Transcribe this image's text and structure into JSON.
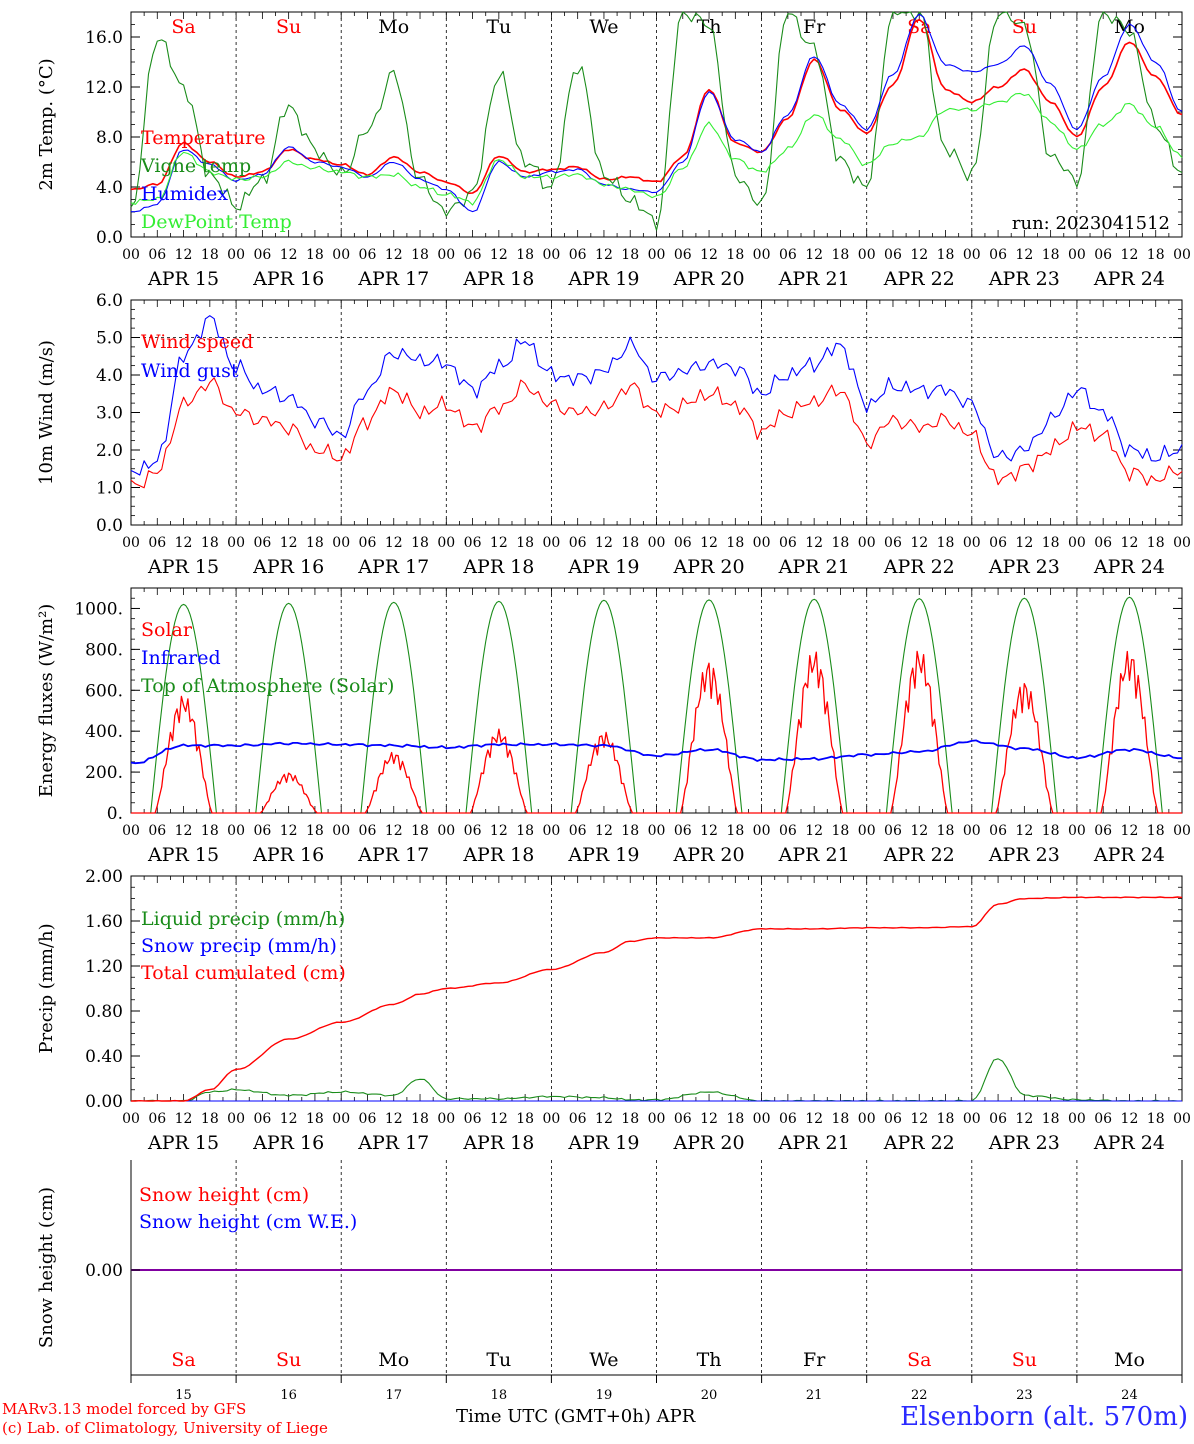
{
  "footer": {
    "credit_line1": "MARv3.13 model forced by GFS",
    "credit_line2": "(c) Lab. of Climatology, University of Liege",
    "time_axis_label": "Time UTC (GMT+0h)",
    "month_label": "APR",
    "station": "Elsenborn (alt. 570m)"
  },
  "colors": {
    "red": "#ff0000",
    "green": "#1a8c1a",
    "blue": "#0000ff",
    "light_green": "#33ee33",
    "purple": "#8000a0",
    "weekend": "#ff0000",
    "weekday": "#000000"
  },
  "chart_data": [
    {
      "type": "line",
      "ylabel": "2m Temp. (°C)",
      "ylim": [
        0,
        18
      ],
      "yticks": [
        "0.0",
        "4.0",
        "8.0",
        "12.0",
        "16.0"
      ],
      "ytick_values": [
        0,
        4,
        8,
        12,
        16
      ],
      "annotation": "run: 2023041512",
      "top_day_labels": [
        "Sa",
        "Su",
        "Mo",
        "Tu",
        "We",
        "Th",
        "Fr",
        "Sa",
        "Su",
        "Mo"
      ],
      "x_hours": [
        0,
        6,
        12,
        18,
        24,
        30,
        36,
        42,
        48,
        54,
        60,
        66,
        72,
        78,
        84,
        90,
        96,
        102,
        108,
        114,
        120,
        126,
        132,
        138,
        144,
        150,
        156,
        162,
        168,
        174,
        180,
        186,
        192,
        198,
        204,
        210,
        216,
        222,
        228,
        234,
        240
      ],
      "series": [
        {
          "name": "Temperature",
          "color": "#ff0000",
          "values": [
            3.8,
            4.2,
            7.5,
            6.0,
            4.8,
            5.2,
            7.0,
            6.2,
            5.8,
            5.0,
            6.4,
            5.2,
            4.4,
            3.5,
            6.5,
            5.2,
            5.4,
            5.6,
            4.6,
            4.8,
            4.4,
            6.4,
            11.8,
            7.5,
            6.8,
            9.5,
            14.2,
            10.2,
            8.3,
            12.2,
            17.5,
            11.8,
            10.8,
            12.0,
            13.4,
            10.8,
            8.0,
            12.0,
            15.6,
            12.8,
            9.8
          ]
        },
        {
          "name": "Vigne temp",
          "color": "#1a8c1a",
          "values": [
            2.0,
            16.0,
            12.0,
            5.0,
            2.5,
            4.5,
            10.5,
            7.0,
            5.0,
            8.5,
            13.0,
            4.5,
            2.0,
            3.5,
            13.0,
            6.0,
            4.0,
            13.8,
            5.0,
            3.0,
            1.2,
            18.0,
            17.0,
            5.0,
            2.5,
            18.0,
            15.0,
            6.0,
            4.0,
            18.0,
            18.0,
            7.0,
            5.0,
            18.0,
            17.0,
            6.5,
            4.5,
            18.0,
            16.5,
            9.0,
            5.0
          ]
        },
        {
          "name": "Humidex",
          "color": "#0000ff",
          "values": [
            2.0,
            2.6,
            7.0,
            5.8,
            4.5,
            5.0,
            7.2,
            6.0,
            5.6,
            4.8,
            6.0,
            4.6,
            3.8,
            2.0,
            6.0,
            4.8,
            5.2,
            5.4,
            4.2,
            3.8,
            3.6,
            6.0,
            11.6,
            7.8,
            6.8,
            9.8,
            14.5,
            10.6,
            8.6,
            13.0,
            17.8,
            13.8,
            13.2,
            13.8,
            15.3,
            12.2,
            8.6,
            12.8,
            17.0,
            14.0,
            10.0
          ]
        },
        {
          "name": "DewPoint Temp",
          "color": "#33ee33",
          "values": [
            2.8,
            3.0,
            6.8,
            5.2,
            4.6,
            4.8,
            6.0,
            5.5,
            5.2,
            4.8,
            5.0,
            4.0,
            3.4,
            2.8,
            6.2,
            4.8,
            4.8,
            5.0,
            4.2,
            3.8,
            3.2,
            5.5,
            9.0,
            6.2,
            5.2,
            7.0,
            9.8,
            7.8,
            5.8,
            7.5,
            8.0,
            10.2,
            10.2,
            10.8,
            11.5,
            9.2,
            7.0,
            9.0,
            10.6,
            8.8,
            6.4
          ]
        }
      ]
    },
    {
      "type": "line",
      "ylabel": "10m Wind (m/s)",
      "ylim": [
        0,
        6
      ],
      "yticks": [
        "0.0",
        "1.0",
        "2.0",
        "3.0",
        "4.0",
        "5.0",
        "6.0"
      ],
      "ytick_values": [
        0,
        1,
        2,
        3,
        4,
        5,
        6
      ],
      "x_hours": [
        0,
        6,
        12,
        18,
        24,
        30,
        36,
        42,
        48,
        54,
        60,
        66,
        72,
        78,
        84,
        90,
        96,
        102,
        108,
        114,
        120,
        126,
        132,
        138,
        144,
        150,
        156,
        162,
        168,
        174,
        180,
        186,
        192,
        198,
        204,
        210,
        216,
        222,
        228,
        234,
        240
      ],
      "series": [
        {
          "name": "Wind speed",
          "color": "#ff0000",
          "values": [
            1.0,
            1.4,
            3.2,
            3.8,
            3.0,
            2.8,
            2.6,
            2.0,
            1.8,
            2.8,
            3.6,
            3.0,
            3.2,
            2.6,
            3.1,
            3.7,
            3.2,
            3.0,
            3.1,
            3.7,
            3.0,
            3.2,
            3.5,
            3.2,
            2.5,
            3.0,
            3.3,
            3.6,
            2.2,
            2.8,
            2.6,
            2.8,
            2.4,
            1.2,
            1.5,
            2.0,
            2.6,
            2.4,
            1.4,
            1.2,
            1.5
          ]
        },
        {
          "name": "Wind gust",
          "color": "#0000ff",
          "values": [
            1.4,
            1.7,
            4.5,
            5.5,
            4.2,
            3.6,
            3.4,
            2.8,
            2.4,
            3.6,
            4.6,
            4.4,
            4.3,
            3.6,
            4.2,
            4.9,
            4.0,
            3.9,
            4.1,
            4.8,
            3.9,
            4.1,
            4.3,
            4.2,
            3.5,
            4.0,
            4.3,
            4.8,
            3.2,
            3.7,
            3.6,
            3.6,
            3.2,
            1.8,
            2.0,
            2.8,
            3.6,
            3.0,
            2.0,
            1.8,
            2.0
          ]
        }
      ]
    },
    {
      "type": "line",
      "ylabel": "Energy fluxes (W/m²)",
      "ylim": [
        0,
        1100
      ],
      "yticks": [
        "0.",
        "200.",
        "400.",
        "600.",
        "800.",
        "1000."
      ],
      "ytick_values": [
        0,
        200,
        400,
        600,
        800,
        1000
      ],
      "daily_peaks": {
        "toa": [
          1020,
          1025,
          1030,
          1035,
          1040,
          1042,
          1045,
          1048,
          1050,
          1055
        ],
        "solar": [
          580,
          200,
          300,
          410,
          400,
          750,
          800,
          805,
          650,
          800
        ]
      },
      "series": [
        {
          "name": "Solar",
          "color": "#ff0000"
        },
        {
          "name": "Infrared",
          "color": "#0000ff",
          "x_hours": [
            0,
            12,
            24,
            36,
            48,
            60,
            72,
            84,
            96,
            108,
            120,
            132,
            144,
            156,
            168,
            180,
            192,
            204,
            216,
            228,
            240
          ],
          "values": [
            240,
            330,
            330,
            340,
            335,
            330,
            320,
            335,
            335,
            330,
            280,
            310,
            260,
            265,
            285,
            300,
            350,
            315,
            270,
            310,
            270
          ]
        },
        {
          "name": "Top of Atmosphere (Solar)",
          "color": "#1a8c1a"
        }
      ]
    },
    {
      "type": "line",
      "ylabel": "Precip (mm/h)",
      "ylim": [
        0,
        2.0
      ],
      "yticks": [
        "0.00",
        "0.40",
        "0.80",
        "1.20",
        "1.60",
        "2.00"
      ],
      "ytick_values": [
        0,
        0.4,
        0.8,
        1.2,
        1.6,
        2.0
      ],
      "x_hours": [
        0,
        12,
        18,
        24,
        36,
        48,
        60,
        66,
        72,
        84,
        96,
        108,
        114,
        120,
        132,
        144,
        156,
        168,
        180,
        192,
        198,
        204,
        216,
        228,
        240
      ],
      "series": [
        {
          "name": "Liquid precip (mm/h)",
          "color": "#1a8c1a",
          "values": [
            0,
            0,
            0.08,
            0.1,
            0.05,
            0.08,
            0.05,
            0.2,
            0.02,
            0.02,
            0.04,
            0.03,
            0.01,
            0.01,
            0.08,
            0,
            0,
            0,
            0,
            0,
            0.38,
            0.05,
            0.01,
            0,
            0
          ]
        },
        {
          "name": "Snow precip (mm/h)",
          "color": "#0000ff",
          "values": [
            0,
            0,
            0,
            0,
            0,
            0,
            0,
            0,
            0,
            0,
            0,
            0,
            0,
            0,
            0,
            0,
            0,
            0,
            0,
            0,
            0,
            0,
            0,
            0,
            0
          ]
        },
        {
          "name": "Total cumulated (cm)",
          "color": "#ff0000",
          "values": [
            0,
            0,
            0.1,
            0.28,
            0.55,
            0.7,
            0.86,
            0.95,
            1.0,
            1.05,
            1.17,
            1.32,
            1.42,
            1.45,
            1.45,
            1.53,
            1.53,
            1.54,
            1.54,
            1.55,
            1.75,
            1.8,
            1.81,
            1.81,
            1.81
          ]
        }
      ]
    },
    {
      "type": "line",
      "ylabel": "Snow height (cm)",
      "ytick": "0.00",
      "bottom_day_labels": [
        "Sa",
        "Su",
        "Mo",
        "Tu",
        "We",
        "Th",
        "Fr",
        "Sa",
        "Su",
        "Mo"
      ],
      "bottom_day_numbers": [
        "15",
        "16",
        "17",
        "18",
        "19",
        "20",
        "21",
        "22",
        "23",
        "24"
      ],
      "series": [
        {
          "name": "Snow height (cm)",
          "color": "#ff0000",
          "values": [
            0,
            0
          ]
        },
        {
          "name": "Snow height (cm W.E.)",
          "color": "#0000ff",
          "values": [
            0,
            0
          ]
        }
      ]
    }
  ],
  "x_axis": {
    "hour_labels": [
      "00",
      "06",
      "12",
      "18"
    ],
    "final_label": "00",
    "date_labels": [
      "APR 15",
      "APR 16",
      "APR 17",
      "APR 18",
      "APR 19",
      "APR 20",
      "APR 21",
      "APR 22",
      "APR 23",
      "APR 24"
    ],
    "weekend_days": [
      0,
      1,
      7,
      8
    ]
  }
}
